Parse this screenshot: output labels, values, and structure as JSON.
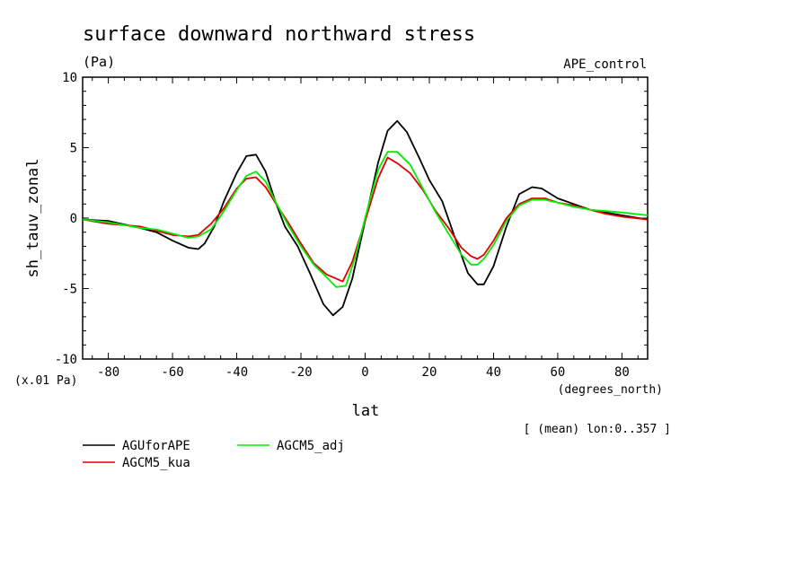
{
  "chart_data": {
    "type": "line",
    "title": "surface downward northward stress",
    "units": "(Pa)",
    "run_label": "APE_control",
    "ylabel": "sh_tauv_zonal",
    "xlabel": "lat",
    "x_units": "(degrees_north)",
    "y_scale_note": "(x.01 Pa)",
    "info": "[ (mean) lon:0..357 ]",
    "xlim": [
      -88,
      88
    ],
    "ylim": [
      -10,
      10
    ],
    "x_ticks": [
      -80,
      -60,
      -40,
      -20,
      0,
      20,
      40,
      60,
      80
    ],
    "x_tick_labels": [
      "-80",
      "-60",
      "-40",
      "-20",
      "0",
      "20",
      "40",
      "60",
      "80"
    ],
    "y_ticks": [
      -10,
      -5,
      0,
      5,
      10
    ],
    "y_tick_labels": [
      "-10",
      "-5",
      "0",
      "5",
      "10"
    ],
    "legend": {
      "placement": "bottom-left",
      "entries": [
        {
          "name": "AGUforAPE",
          "color": "#000000"
        },
        {
          "name": "AGCM5_adj",
          "color": "#00ee00"
        },
        {
          "name": "AGCM5_kua",
          "color": "#e00000"
        }
      ]
    },
    "series": [
      {
        "name": "AGUforAPE",
        "color": "#000000",
        "x": [
          -88,
          -80,
          -70,
          -65,
          -60,
          -55,
          -52,
          -50,
          -47,
          -44,
          -40,
          -37,
          -34,
          -31,
          -28,
          -25,
          -21,
          -17,
          -13,
          -10,
          -7,
          -4,
          0,
          4,
          7,
          10,
          13,
          17,
          20,
          24,
          28,
          32,
          35,
          37,
          40,
          44,
          48,
          52,
          55,
          60,
          65,
          70,
          75,
          80,
          88
        ],
        "y": [
          -0.1,
          -0.2,
          -0.7,
          -1.0,
          -1.6,
          -2.1,
          -2.2,
          -1.8,
          -0.6,
          1.2,
          3.2,
          4.4,
          4.5,
          3.3,
          1.2,
          -0.6,
          -2.0,
          -4.0,
          -6.1,
          -6.9,
          -6.3,
          -4.3,
          -0.2,
          3.9,
          6.2,
          6.9,
          6.1,
          4.2,
          2.7,
          1.2,
          -1.4,
          -3.9,
          -4.7,
          -4.7,
          -3.4,
          -0.6,
          1.7,
          2.2,
          2.1,
          1.4,
          1.0,
          0.6,
          0.4,
          0.2,
          -0.1
        ]
      },
      {
        "name": "AGCM5_kua",
        "color": "#e00000",
        "x": [
          -88,
          -80,
          -75,
          -70,
          -65,
          -60,
          -55,
          -52,
          -48,
          -44,
          -40,
          -37,
          -34,
          -31,
          -28,
          -24,
          -20,
          -16,
          -12,
          -7,
          -4,
          0,
          4,
          7,
          10,
          14,
          18,
          22,
          26,
          30,
          33,
          35,
          37,
          40,
          44,
          48,
          52,
          56,
          60,
          65,
          70,
          75,
          80,
          88
        ],
        "y": [
          -0.1,
          -0.4,
          -0.5,
          -0.6,
          -0.9,
          -1.2,
          -1.3,
          -1.2,
          -0.4,
          0.7,
          2.1,
          2.8,
          2.9,
          2.2,
          1.1,
          -0.3,
          -1.8,
          -3.2,
          -4.0,
          -4.5,
          -3.1,
          -0.2,
          2.8,
          4.3,
          3.9,
          3.2,
          2.0,
          0.5,
          -0.7,
          -2.1,
          -2.7,
          -2.9,
          -2.6,
          -1.6,
          0.0,
          1.0,
          1.4,
          1.4,
          1.1,
          0.9,
          0.6,
          0.3,
          0.1,
          -0.1
        ]
      },
      {
        "name": "AGCM5_adj",
        "color": "#00ee00",
        "x": [
          -88,
          -80,
          -75,
          -70,
          -65,
          -60,
          -55,
          -52,
          -48,
          -44,
          -40,
          -37,
          -34,
          -31,
          -28,
          -24,
          -20,
          -16,
          -12,
          -9,
          -6,
          -3,
          0,
          4,
          7,
          10,
          14,
          18,
          22,
          26,
          30,
          33,
          35,
          37,
          40,
          44,
          48,
          52,
          56,
          60,
          65,
          70,
          75,
          80,
          88
        ],
        "y": [
          -0.1,
          -0.3,
          -0.5,
          -0.7,
          -0.8,
          -1.1,
          -1.4,
          -1.3,
          -0.8,
          0.5,
          2.0,
          3.0,
          3.3,
          2.6,
          1.2,
          -0.5,
          -2.0,
          -3.3,
          -4.2,
          -4.9,
          -4.8,
          -2.7,
          0.0,
          3.4,
          4.7,
          4.7,
          3.8,
          2.1,
          0.4,
          -1.1,
          -2.6,
          -3.3,
          -3.3,
          -2.9,
          -1.9,
          -0.2,
          0.9,
          1.3,
          1.3,
          1.1,
          0.8,
          0.6,
          0.5,
          0.4,
          0.2
        ]
      }
    ]
  }
}
